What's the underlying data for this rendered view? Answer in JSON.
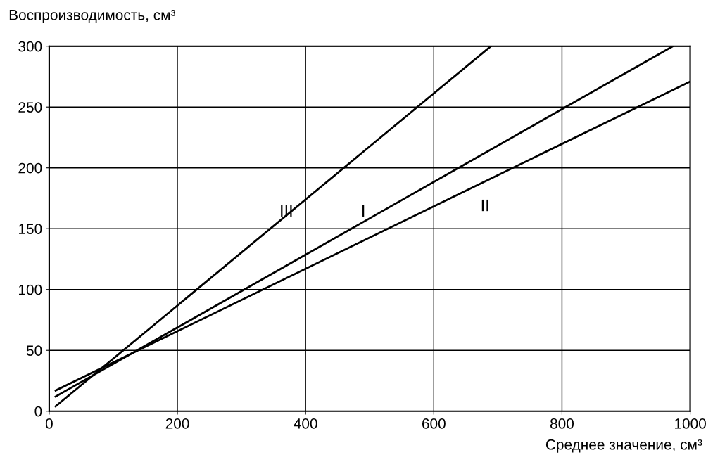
{
  "chart_data": {
    "type": "line",
    "ylabel": "Воспроизводимость, см³",
    "xlabel": "Среднее значение, см³",
    "series": [
      {
        "x": [
          10,
          973
        ],
        "values": [
          12,
          300
        ],
        "color": "#000000"
      },
      {
        "x": [
          10,
          1000
        ],
        "values": [
          17,
          271
        ],
        "color": "#000000"
      },
      {
        "x": [
          10,
          689
        ],
        "values": [
          4,
          300
        ],
        "color": "#000000"
      }
    ],
    "annotations": [
      "III",
      "I",
      "II"
    ],
    "xlim": [
      0,
      1000
    ],
    "ylim": [
      0,
      300
    ],
    "xticks": [
      0,
      200,
      400,
      600,
      800,
      1000
    ],
    "yticks": [
      0,
      50,
      100,
      150,
      200,
      250,
      300
    ],
    "grid": true,
    "marker": "none",
    "line_style": "solid"
  }
}
